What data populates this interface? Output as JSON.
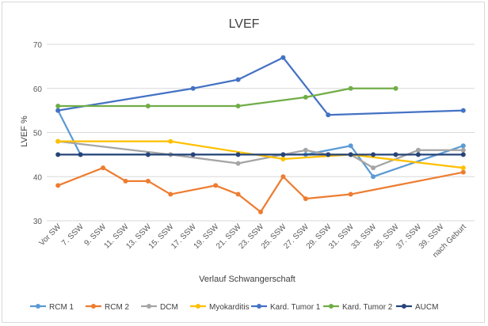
{
  "chart_data": {
    "type": "line",
    "title": "LVEF",
    "xlabel": "Verlauf Schwangerschaft",
    "ylabel": "LVEF %",
    "ylim": [
      30,
      70
    ],
    "yticks": [
      30,
      40,
      50,
      60,
      70
    ],
    "grid": true,
    "legend_position": "bottom",
    "categories": [
      "Vor SW",
      "7. SSW",
      "9. SSW",
      "11. SSW",
      "13. SSW",
      "15. SSW",
      "17. SSW",
      "19. SSW",
      "21. SSW",
      "23. SSW",
      "25. SSW",
      "27. SSW",
      "29. SSW",
      "31. SSW",
      "33. SSW",
      "35. SSW",
      "37. SSW",
      "39. SSW",
      "nach Geburt"
    ],
    "series": [
      {
        "name": "RCM 1",
        "color": "#5b9bd5",
        "values": [
          55,
          45,
          null,
          null,
          45,
          45,
          null,
          null,
          null,
          null,
          45,
          45,
          null,
          47,
          40,
          null,
          null,
          null,
          47
        ]
      },
      {
        "name": "RCM 2",
        "color": "#ed7d31",
        "values": [
          38,
          null,
          42,
          39,
          39,
          36,
          null,
          38,
          36,
          32,
          40,
          35,
          null,
          36,
          null,
          null,
          null,
          null,
          41
        ]
      },
      {
        "name": "DCM",
        "color": "#a5a5a5",
        "values": [
          48,
          null,
          null,
          null,
          null,
          45,
          null,
          null,
          43,
          null,
          null,
          46,
          45,
          45,
          42,
          null,
          46,
          null,
          46
        ]
      },
      {
        "name": "Myokarditis",
        "color": "#ffc000",
        "values": [
          48,
          null,
          null,
          null,
          null,
          48,
          null,
          null,
          null,
          null,
          44,
          null,
          null,
          45,
          null,
          null,
          null,
          null,
          42
        ]
      },
      {
        "name": "Kard. Tumor 1",
        "color": "#4472c4",
        "values": [
          55,
          null,
          null,
          null,
          null,
          null,
          60,
          null,
          62,
          null,
          67,
          null,
          54,
          null,
          null,
          null,
          null,
          null,
          55
        ]
      },
      {
        "name": "Kard. Tumor 2",
        "color": "#70ad47",
        "values": [
          56,
          null,
          null,
          null,
          56,
          null,
          null,
          null,
          56,
          null,
          null,
          58,
          null,
          60,
          null,
          60,
          null,
          null,
          null
        ]
      },
      {
        "name": "AUCM",
        "color": "#264478",
        "values": [
          45,
          45,
          null,
          null,
          45,
          null,
          45,
          null,
          45,
          null,
          45,
          null,
          45,
          45,
          45,
          45,
          45,
          null,
          45
        ]
      }
    ]
  }
}
